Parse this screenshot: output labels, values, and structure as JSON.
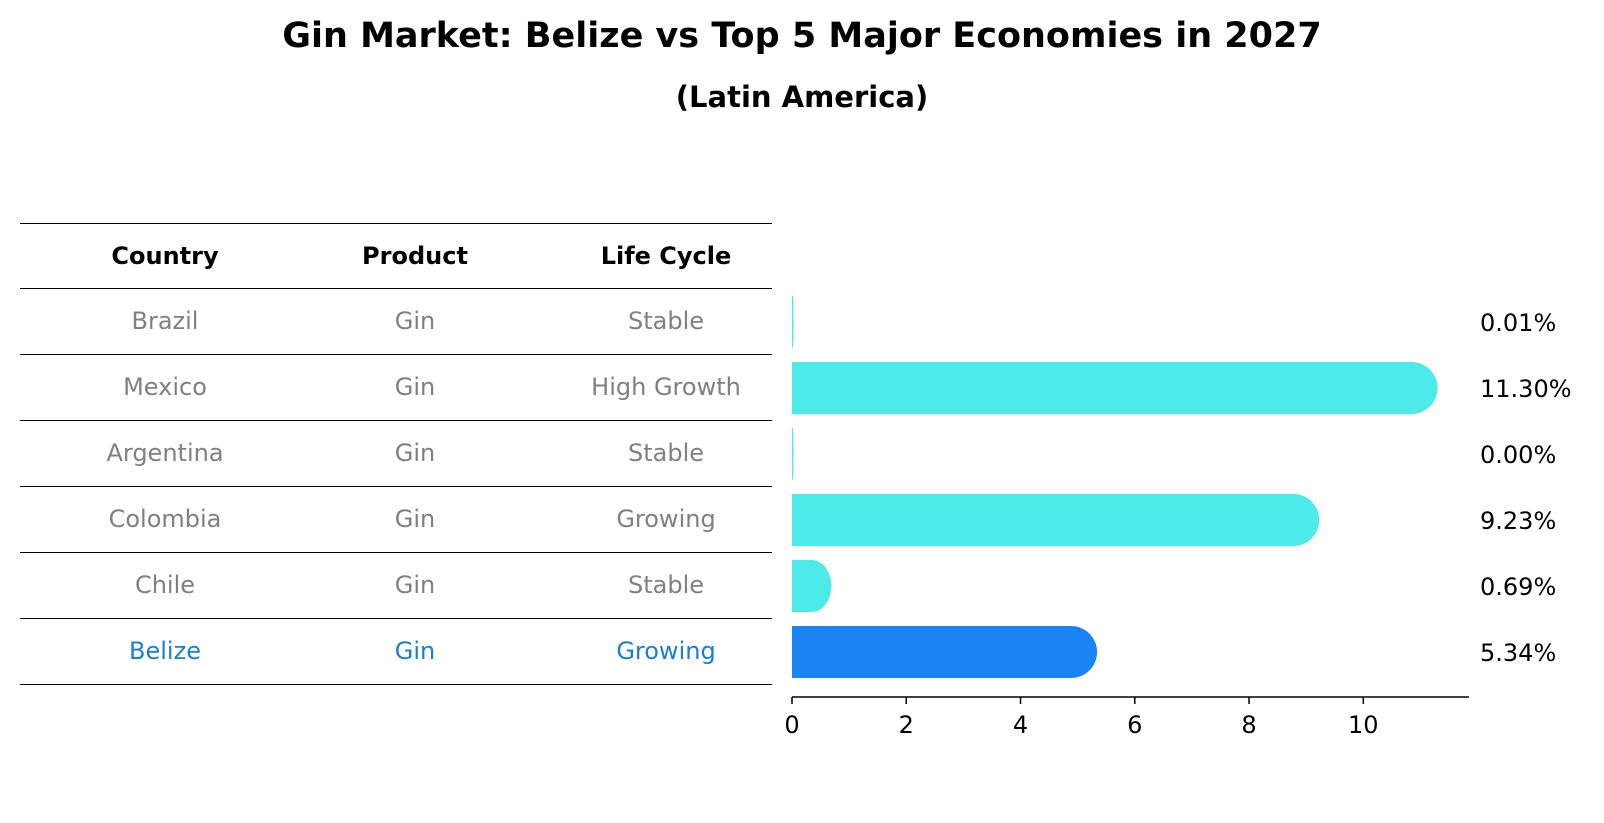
{
  "title": "Gin Market: Belize vs Top 5 Major Economies in 2027",
  "subtitle": "(Latin America)",
  "table": {
    "headers": [
      "Country",
      "Product",
      "Life Cycle"
    ],
    "rows": [
      [
        "Brazil",
        "Gin",
        "Stable"
      ],
      [
        "Mexico",
        "Gin",
        "High Growth"
      ],
      [
        "Argentina",
        "Gin",
        "Stable"
      ],
      [
        "Colombia",
        "Gin",
        "Growing"
      ],
      [
        "Chile",
        "Gin",
        "Stable"
      ],
      [
        "Belize",
        "Gin",
        "Growing"
      ]
    ]
  },
  "chart_data": {
    "type": "bar",
    "orientation": "horizontal",
    "categories": [
      "Brazil",
      "Mexico",
      "Argentina",
      "Colombia",
      "Chile",
      "Belize"
    ],
    "values": [
      0.01,
      11.3,
      0.0,
      9.23,
      0.69,
      5.34
    ],
    "value_labels": [
      "0.01%",
      "11.30%",
      "0.00%",
      "9.23%",
      "0.69%",
      "5.34%"
    ],
    "highlight": "Belize",
    "xlim": [
      0,
      11.85
    ],
    "xticks": [
      0,
      2,
      4,
      6,
      8,
      10
    ],
    "colors": {
      "default": "#4deaea",
      "highlight": "#1a84f5",
      "highlight_text": "#1a7fd4"
    }
  }
}
